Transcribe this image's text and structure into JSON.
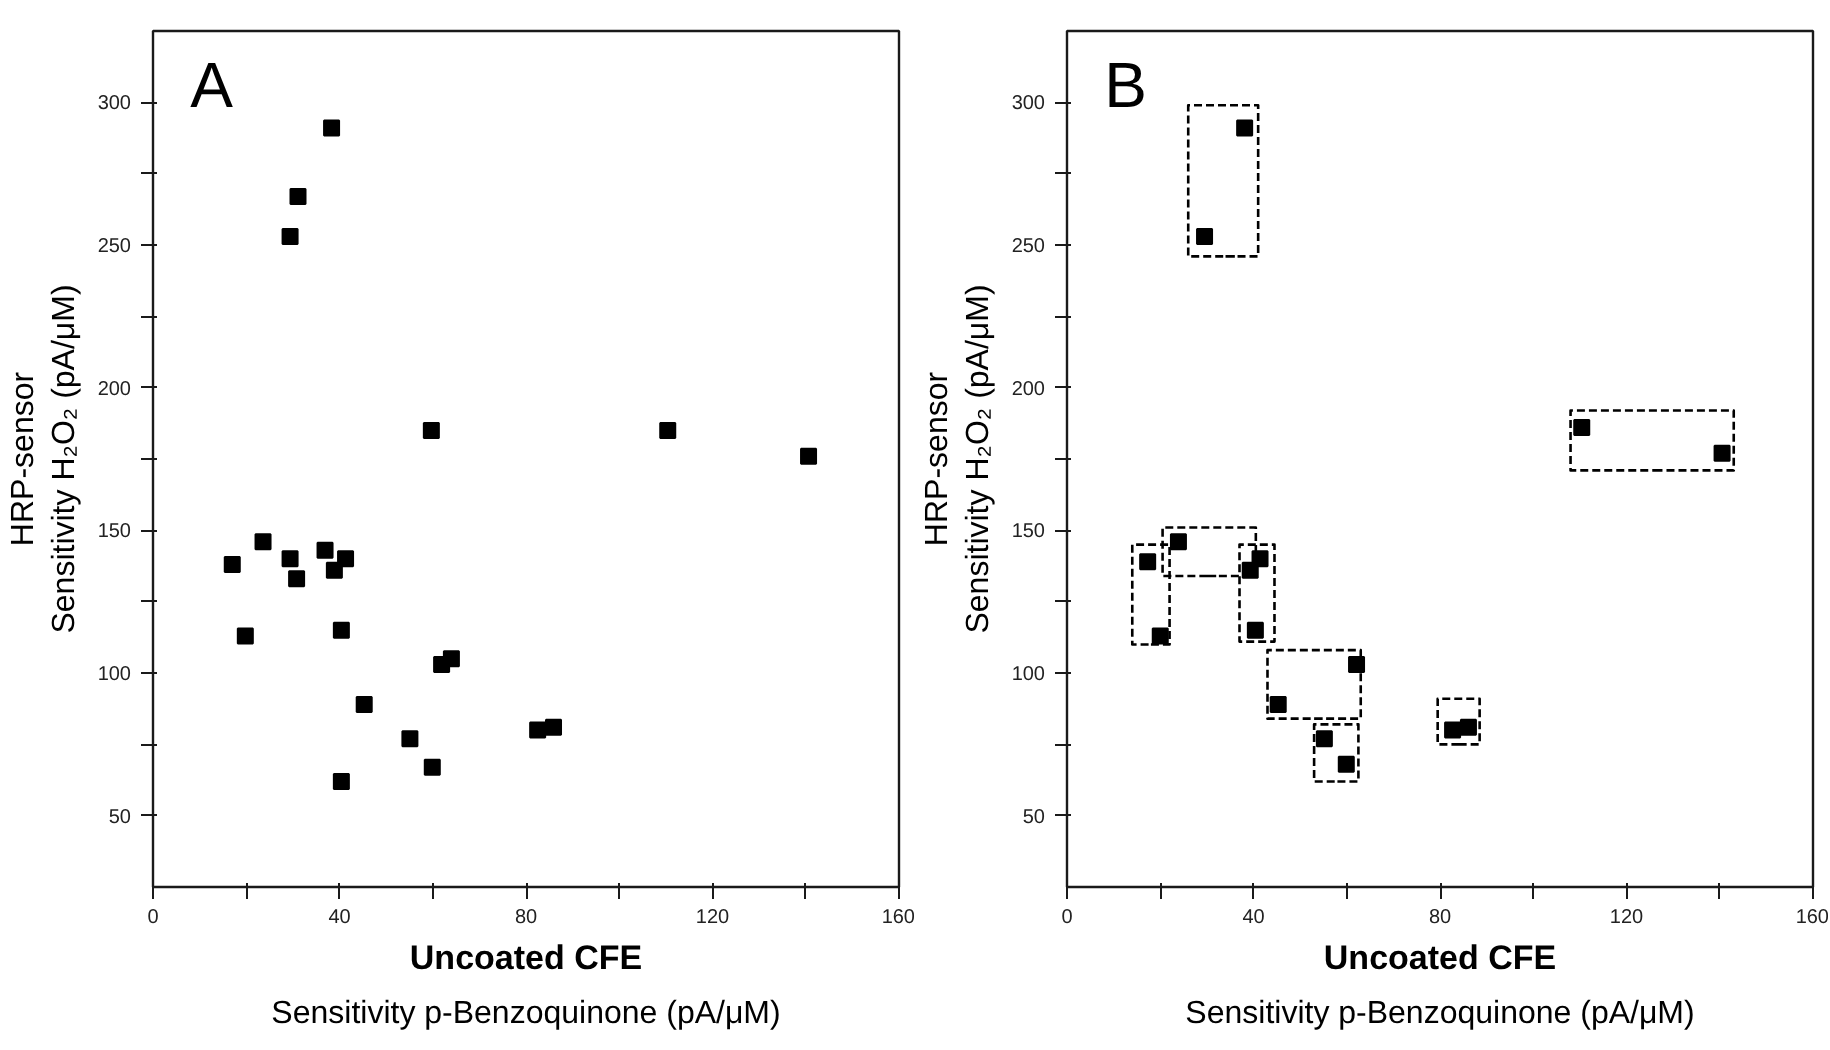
{
  "chart_data": [
    {
      "type": "scatter",
      "annotations": [
        "A"
      ],
      "xlabel": "Uncoated CFE\nSensitivity p-Benzoquinone (pA/μM)",
      "ylabel": "HRP-sensor\nSensitivity H₂O₂ (pA/μM)",
      "marker": "square",
      "grid": false,
      "xlim": [
        0,
        160
      ],
      "ylim": [
        25,
        325
      ],
      "xticks": [
        0,
        {
          "value": 20,
          "label": null
        },
        40,
        {
          "value": 60,
          "label": null
        },
        80,
        {
          "value": 100,
          "label": null
        },
        120,
        {
          "value": 140,
          "label": null
        },
        160
      ],
      "yticks": [
        50,
        {
          "value": 75,
          "label": null
        },
        100,
        {
          "value": 125,
          "label": null
        },
        150,
        {
          "value": 175,
          "label": null
        },
        200,
        {
          "value": 225,
          "label": null
        },
        250,
        {
          "value": 275,
          "label": null
        },
        300
      ],
      "series": [
        {
          "color": "#000000",
          "x": [
            17,
            19.8,
            23.6,
            29.4,
            30.8,
            29.4,
            31.1,
            38.3,
            36.9,
            38.9,
            41.3,
            40.4,
            40.4,
            45.3,
            55.1,
            59.9,
            59.7,
            61.9,
            64,
            82.5,
            85.9,
            110.4,
            140.6
          ],
          "values": [
            138,
            113,
            146,
            140,
            133,
            253,
            267,
            291,
            143,
            136,
            140,
            115,
            62,
            89,
            77,
            67,
            185,
            103,
            105,
            80,
            81,
            185,
            176
          ]
        }
      ]
    },
    {
      "type": "scatter",
      "annotations": [
        "B"
      ],
      "xlabel": "Uncoated CFE\nSensitivity p-Benzoquinone (pA/μM)",
      "ylabel": "HRP-sensor\nSensitivity H₂O₂ (pA/μM)",
      "grid": false,
      "xlim": [
        0,
        160
      ],
      "ylim": [
        25,
        325
      ],
      "xticks": [
        0,
        {
          "value": 20,
          "label": null
        },
        40,
        {
          "value": 60,
          "label": null
        },
        80,
        {
          "value": 100,
          "label": null
        },
        120,
        {
          "value": 140,
          "label": null
        },
        160
      ],
      "yticks": [
        50,
        {
          "value": 75,
          "label": null
        },
        100,
        {
          "value": 125,
          "label": null
        },
        150,
        {
          "value": 175,
          "label": null
        },
        200,
        {
          "value": 225,
          "label": null
        },
        250,
        {
          "value": 275,
          "label": null
        },
        300
      ],
      "series": [
        {
          "color": "#000000",
          "marker": "square",
          "x": [
            17.3,
            20,
            23.9,
            29.5,
            38.1,
            39.3,
            41.4,
            40.4,
            45.3,
            62.1,
            55.2,
            59.9,
            82.7,
            86.1,
            110.4,
            140.5
          ],
          "values": [
            139,
            113,
            146,
            253,
            291,
            136,
            140,
            115,
            89,
            103,
            77,
            68,
            80,
            81,
            186,
            177
          ]
        },
        {
          "type": "line",
          "line_style": "dashed",
          "color": "#000000",
          "x": [
            34,
            41,
            41,
            26,
            26,
            36
          ],
          "values": [
            246,
            246,
            299,
            299,
            246,
            246
          ]
        },
        {
          "type": "line",
          "line_style": "dashed",
          "color": "#000000",
          "x": [
            126,
            143,
            143,
            108,
            108,
            128
          ],
          "values": [
            171,
            171,
            192,
            192,
            171,
            171
          ]
        },
        {
          "type": "line",
          "line_style": "dashed",
          "color": "#000000",
          "x": [
            18,
            22,
            22,
            14,
            14,
            19
          ],
          "values": [
            110,
            110,
            145,
            145,
            110,
            110
          ]
        },
        {
          "type": "line",
          "line_style": "dashed",
          "color": "#000000",
          "x": [
            30,
            40.5,
            40.5,
            20.5,
            20.5,
            32
          ],
          "values": [
            134,
            134,
            151,
            151,
            134,
            134
          ]
        },
        {
          "type": "line",
          "line_style": "dashed",
          "color": "#000000",
          "x": [
            41,
            44.5,
            44.5,
            37,
            37,
            42
          ],
          "values": [
            111,
            111,
            145,
            145,
            111,
            111
          ]
        },
        {
          "type": "line",
          "line_style": "dashed",
          "color": "#000000",
          "x": [
            53,
            63,
            63,
            43,
            43,
            55
          ],
          "values": [
            84,
            84,
            108,
            108,
            84,
            84
          ]
        },
        {
          "type": "line",
          "line_style": "dashed",
          "color": "#000000",
          "x": [
            58,
            62.5,
            62.5,
            53,
            53,
            59
          ],
          "values": [
            62,
            62,
            82,
            82,
            62,
            62
          ]
        },
        {
          "type": "line",
          "line_style": "dashed",
          "color": "#000000",
          "x": [
            84,
            88.5,
            88.5,
            79.5,
            79.5,
            85
          ],
          "values": [
            75,
            75,
            91,
            91,
            75,
            75
          ]
        }
      ]
    }
  ]
}
